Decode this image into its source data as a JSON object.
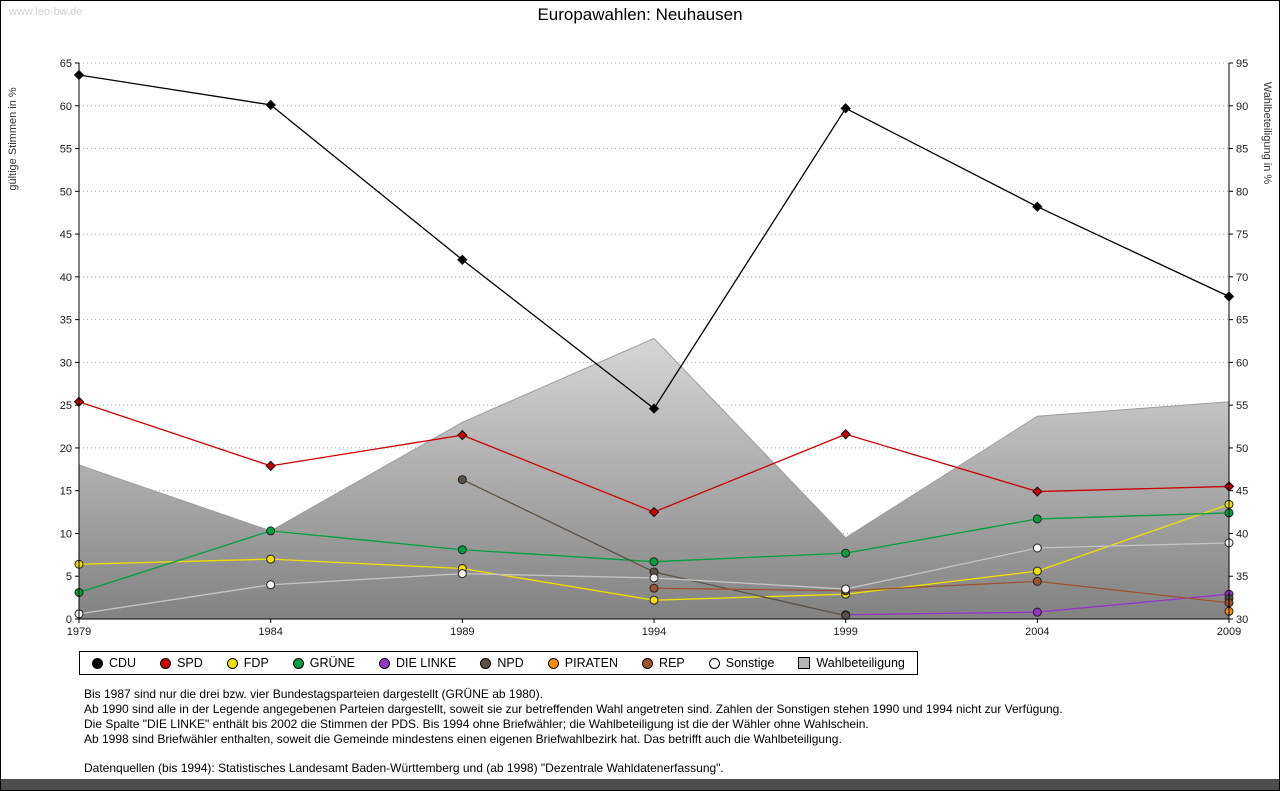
{
  "watermark": "www.leo-bw.de",
  "page_title": "Europawahlen: Neuhausen",
  "chart_data": {
    "type": "line",
    "title": "Europawahlen: Neuhausen",
    "x": [
      "1979",
      "1984",
      "1989",
      "1994",
      "1999",
      "2004",
      "2009"
    ],
    "ylabel_left": "gültige Stimmen in %",
    "ylabel_right": "Wahlbeteiligung in %",
    "ylim_left": [
      0,
      65
    ],
    "ylim_right": [
      30,
      95
    ],
    "ytick_step": 5,
    "grid": "horizontal-dotted",
    "legend_position": "bottom",
    "series": [
      {
        "name": "CDU",
        "color": "#000000",
        "marker": "diamond",
        "values": [
          63.6,
          60.1,
          42.0,
          24.6,
          59.7,
          48.2,
          37.7
        ]
      },
      {
        "name": "SPD",
        "color": "#cc0000",
        "marker": "diamond",
        "values": [
          25.4,
          17.9,
          21.5,
          12.5,
          21.6,
          14.9,
          15.5
        ]
      },
      {
        "name": "FDP",
        "color": "#f0e000",
        "marker": "circle",
        "values": [
          6.4,
          7.0,
          5.9,
          2.2,
          2.9,
          5.6,
          13.4
        ]
      },
      {
        "name": "GRÜNE",
        "color": "#00a040",
        "marker": "circle",
        "values": [
          3.1,
          10.3,
          8.1,
          6.7,
          7.7,
          11.7,
          12.4
        ]
      },
      {
        "name": "DIE LINKE",
        "color": "#9933cc",
        "marker": "circle",
        "values": [
          null,
          null,
          null,
          null,
          0.5,
          0.8,
          2.9
        ]
      },
      {
        "name": "NPD",
        "color": "#5d5145",
        "marker": "circle",
        "values": [
          null,
          null,
          16.3,
          5.5,
          0.4,
          null,
          2.4
        ]
      },
      {
        "name": "PIRATEN",
        "color": "#ff8c00",
        "marker": "circle",
        "values": [
          null,
          null,
          null,
          null,
          null,
          null,
          0.9
        ]
      },
      {
        "name": "REP",
        "color": "#a0522d",
        "marker": "circle",
        "values": [
          null,
          null,
          null,
          3.6,
          3.3,
          4.4,
          1.9
        ]
      },
      {
        "name": "Sonstige",
        "color": "#c4c4c4",
        "marker_fill": "#f5f5f5",
        "marker": "circle",
        "values": [
          0.6,
          4.0,
          5.3,
          4.8,
          3.5,
          8.3,
          8.9
        ]
      },
      {
        "name": "Wahlbeteiligung",
        "type": "area",
        "axis": "right",
        "color": "#b5b5b5",
        "gradient_top": "#d6d6d6",
        "gradient_bottom": "#828282",
        "edge_color": "#9e9e9e",
        "values": [
          48.0,
          40.3,
          53.0,
          62.8,
          39.5,
          53.7,
          55.4
        ]
      }
    ]
  },
  "footnotes": [
    "Bis 1987 sind nur die drei bzw. vier Bundestagsparteien dargestellt (GRÜNE ab 1980).",
    "Ab 1990 sind alle in der Legende angegebenen Parteien dargestellt, soweit sie zur betreffenden Wahl angetreten sind. Zahlen der Sonstigen stehen 1990 und 1994 nicht zur Verfügung.",
    "Die Spalte \"DIE LINKE\" enthält bis 2002 die Stimmen der PDS. Bis 1994 ohne Briefwähler; die Wahlbeteiligung ist die der Wähler ohne Wahlschein.",
    "Ab 1998 sind Briefwähler enthalten, soweit die Gemeinde mindestens einen eigenen Briefwahlbezirk hat. Das betrifft auch die Wahlbeteiligung."
  ],
  "datasource": "Datenquellen (bis 1994): Statistisches Landesamt Baden-Württemberg und (ab 1998) \"Dezentrale Wahldatenerfassung\"."
}
